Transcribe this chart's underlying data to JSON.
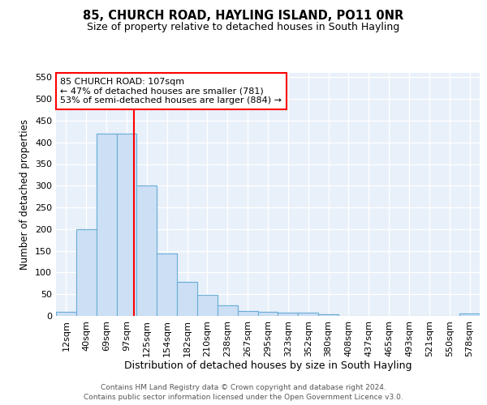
{
  "title": "85, CHURCH ROAD, HAYLING ISLAND, PO11 0NR",
  "subtitle": "Size of property relative to detached houses in South Hayling",
  "xlabel": "Distribution of detached houses by size in South Hayling",
  "ylabel": "Number of detached properties",
  "categories": [
    "12sqm",
    "40sqm",
    "69sqm",
    "97sqm",
    "125sqm",
    "154sqm",
    "182sqm",
    "210sqm",
    "238sqm",
    "267sqm",
    "295sqm",
    "323sqm",
    "352sqm",
    "380sqm",
    "408sqm",
    "437sqm",
    "465sqm",
    "493sqm",
    "521sqm",
    "550sqm",
    "578sqm"
  ],
  "values": [
    10,
    200,
    420,
    420,
    300,
    143,
    78,
    48,
    25,
    12,
    10,
    8,
    7,
    4,
    0,
    0,
    0,
    0,
    0,
    0,
    5
  ],
  "bar_color": "#ccdff5",
  "bar_edge_color": "#6aaed6",
  "background_color": "#e8f0fa",
  "grid_color": "#ffffff",
  "annotation_line_color": "red",
  "annotation_box_text": "85 CHURCH ROAD: 107sqm\n← 47% of detached houses are smaller (781)\n53% of semi-detached houses are larger (884) →",
  "annotation_box_facecolor": "white",
  "annotation_box_edgecolor": "red",
  "ylim": [
    0,
    560
  ],
  "yticks": [
    0,
    50,
    100,
    150,
    200,
    250,
    300,
    350,
    400,
    450,
    500,
    550
  ],
  "footer_line1": "Contains HM Land Registry data © Crown copyright and database right 2024.",
  "footer_line2": "Contains public sector information licensed under the Open Government Licence v3.0.",
  "title_fontsize": 10.5,
  "subtitle_fontsize": 9,
  "xlabel_fontsize": 9,
  "ylabel_fontsize": 8.5,
  "tick_fontsize": 8,
  "bin_edges": [
    12,
    40,
    69,
    97,
    125,
    154,
    182,
    210,
    238,
    267,
    295,
    323,
    352,
    380,
    408,
    437,
    465,
    493,
    521,
    550,
    578
  ],
  "property_sqm": 107
}
